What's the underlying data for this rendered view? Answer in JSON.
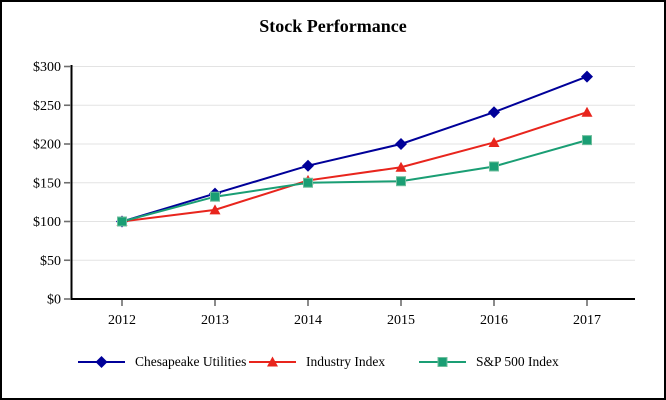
{
  "window": {
    "title": "Stock Performance"
  },
  "chart_data": {
    "type": "line",
    "title": "Stock Performance",
    "x": [
      2012,
      2013,
      2014,
      2015,
      2016,
      2017
    ],
    "xtick_labels": [
      "2012",
      "2013",
      "2014",
      "2015",
      "2016",
      "2017"
    ],
    "series": [
      {
        "name": "Chesapeake Utilities",
        "marker": "diamond",
        "color": "#000099",
        "values": [
          100,
          136,
          172,
          200,
          241,
          287
        ]
      },
      {
        "name": "Industry Index",
        "marker": "triangle",
        "color": "#E8251D",
        "values": [
          100,
          115,
          153,
          170,
          202,
          241
        ]
      },
      {
        "name": "S&P 500 Index",
        "marker": "square",
        "color": "#1A9E74",
        "marker_edge": "#6FBE9C",
        "values": [
          100,
          132,
          150,
          152,
          171,
          205
        ]
      }
    ],
    "ylim": [
      0,
      300
    ],
    "ytick_step": 50,
    "ytick_labels": [
      "$0",
      "$50",
      "$100",
      "$150",
      "$200",
      "$250",
      "$300"
    ],
    "grid": true,
    "gridline_color": "#E3E3E3",
    "axis_color": "#000000",
    "tick_color": "#6E6E6E",
    "legend_position": "bottom"
  }
}
